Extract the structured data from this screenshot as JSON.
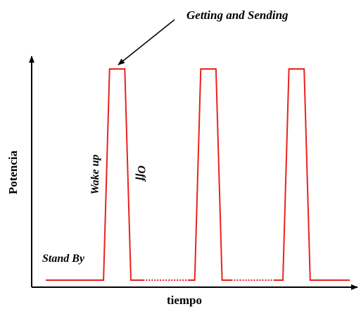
{
  "chart_data": {
    "type": "line",
    "title": "",
    "xlabel": "tiempo",
    "ylabel": "Potencia",
    "annotations": {
      "arrow_label": "Getting  and Sending",
      "rise_label": "Wake up",
      "fall_label": "Off",
      "baseline_label": "Stand By"
    },
    "series": [
      {
        "x": [
          0.0,
          0.19,
          0.21,
          0.26,
          0.28,
          0.49,
          0.51,
          0.56,
          0.58,
          0.78,
          0.8,
          0.85,
          0.87,
          1.0
        ],
        "values": [
          0.05,
          0.05,
          1.0,
          1.0,
          0.05,
          0.05,
          1.0,
          1.0,
          0.05,
          0.05,
          1.0,
          1.0,
          0.05,
          0.05
        ]
      }
    ],
    "gaps_dotted": [
      [
        0.32,
        0.47
      ],
      [
        0.61,
        0.75
      ]
    ],
    "color": "#e8231d",
    "grid": false
  }
}
